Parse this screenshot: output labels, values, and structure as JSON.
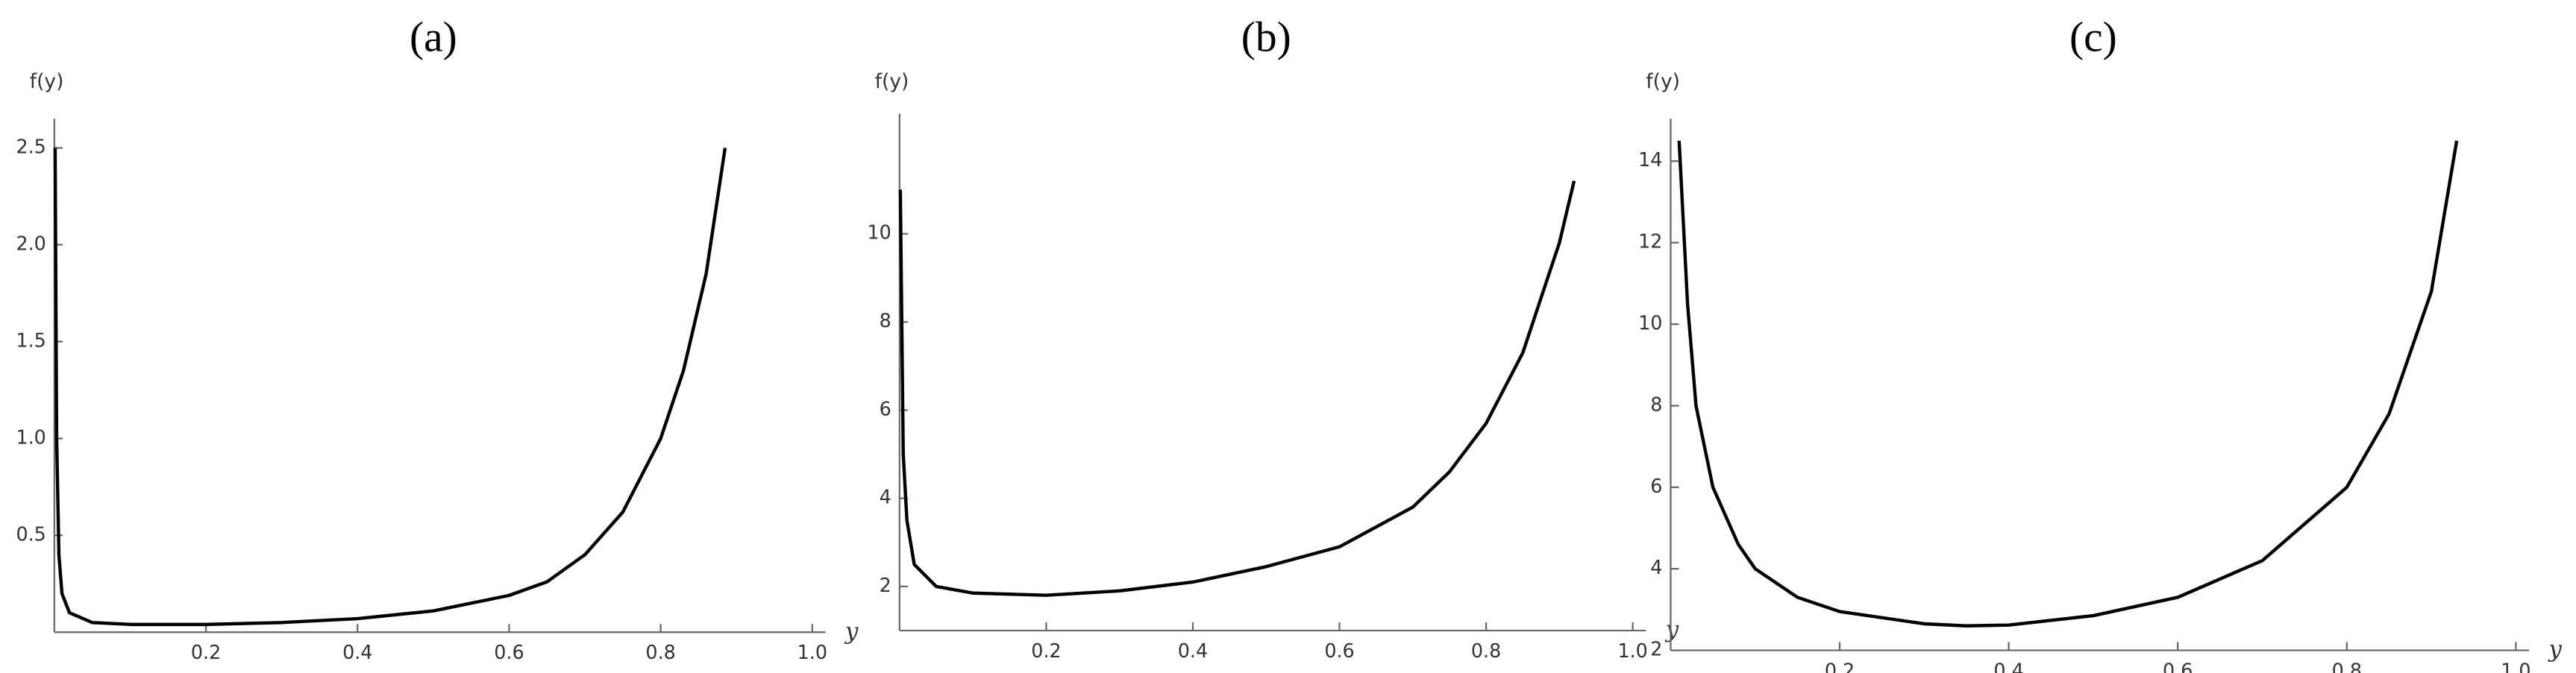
{
  "chart_data": [
    {
      "type": "line",
      "title": "(a)",
      "ylabel": "f(y)",
      "xlabel": "y",
      "color": "#000000",
      "x": [
        0.001,
        0.003,
        0.006,
        0.01,
        0.02,
        0.05,
        0.1,
        0.2,
        0.3,
        0.4,
        0.5,
        0.6,
        0.65,
        0.7,
        0.75,
        0.8,
        0.83,
        0.86,
        0.885
      ],
      "values": [
        2.5,
        1.0,
        0.4,
        0.2,
        0.1,
        0.05,
        0.04,
        0.04,
        0.05,
        0.07,
        0.11,
        0.19,
        0.26,
        0.4,
        0.62,
        1.0,
        1.35,
        1.85,
        2.5
      ],
      "xlim": [
        0,
        1
      ],
      "xticks": [
        0.2,
        0.4,
        0.6,
        0.8,
        {
          "value": 1,
          "label": "1.0"
        }
      ],
      "ylim": [
        0,
        2.6
      ],
      "yticks": [
        0.5,
        {
          "value": 1,
          "label": "1.0"
        },
        1.5,
        {
          "value": 2,
          "label": "2.0"
        },
        2.5
      ]
    },
    {
      "type": "line",
      "title": "(b)",
      "ylabel": "f(y)",
      "xlabel": "y",
      "color": "#000000",
      "x": [
        0.001,
        0.005,
        0.01,
        0.02,
        0.05,
        0.1,
        0.2,
        0.3,
        0.4,
        0.5,
        0.6,
        0.7,
        0.75,
        0.8,
        0.85,
        0.9,
        0.92
      ],
      "values": [
        11,
        5,
        3.5,
        2.5,
        2.0,
        1.85,
        1.8,
        1.9,
        2.1,
        2.45,
        2.9,
        3.8,
        4.6,
        5.7,
        7.3,
        9.8,
        11.2
      ],
      "xlim": [
        0,
        1
      ],
      "xticks": [
        0.2,
        0.4,
        0.6,
        0.8,
        {
          "value": 1,
          "label": "1.0"
        }
      ],
      "ylim": [
        1,
        12.5
      ],
      "yticks": [
        2,
        4,
        6,
        8,
        10
      ]
    },
    {
      "type": "line",
      "title": "(c)",
      "ylabel": "f(y)",
      "xlabel": "y",
      "color": "#000000",
      "x": [
        0.01,
        0.02,
        0.03,
        0.05,
        0.08,
        0.1,
        0.15,
        0.2,
        0.3,
        0.35,
        0.4,
        0.5,
        0.6,
        0.7,
        0.8,
        0.85,
        0.9,
        0.93
      ],
      "values": [
        14.5,
        10.5,
        8,
        6,
        4.6,
        4.0,
        3.3,
        2.95,
        2.65,
        2.6,
        2.62,
        2.85,
        3.3,
        4.2,
        6.0,
        7.8,
        10.8,
        14.5
      ],
      "xlim": [
        0,
        1
      ],
      "xticks": [
        0.2,
        0.4,
        0.6,
        0.8,
        {
          "value": 1,
          "label": "1.0"
        }
      ],
      "ylim": [
        2,
        14.8
      ],
      "yticks": [
        2,
        4,
        6,
        8,
        10,
        12,
        14
      ]
    }
  ]
}
